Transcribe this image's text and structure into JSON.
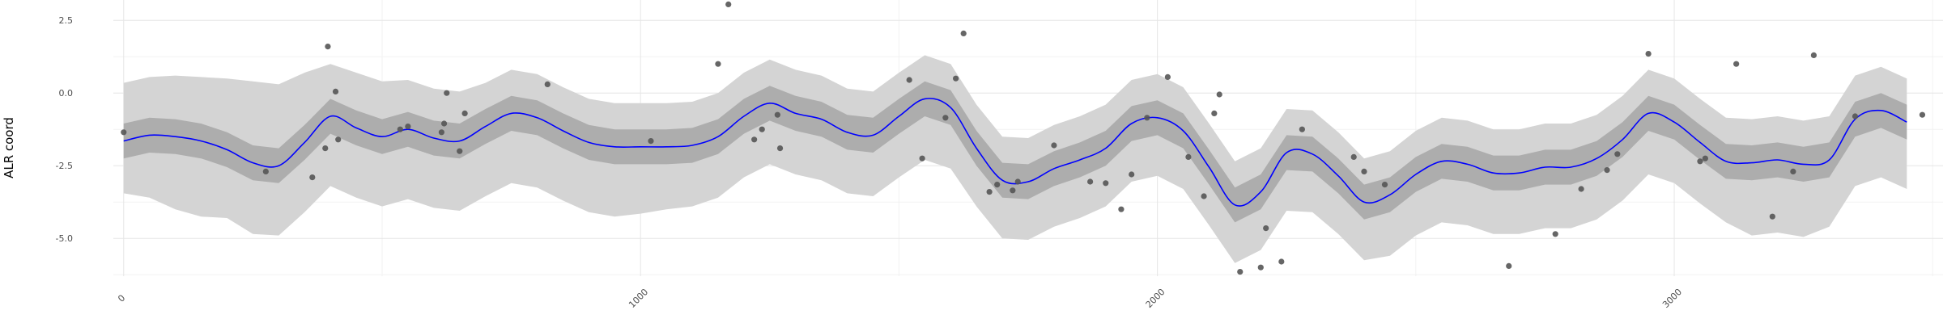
{
  "chart_data": {
    "type": "line",
    "title": "",
    "xlabel": "",
    "ylabel": "ALR coord",
    "xlim": [
      -20,
      3520
    ],
    "ylim": [
      -6.3,
      3.2
    ],
    "xticks": [
      0,
      1000,
      2000,
      3000
    ],
    "xtick_labels": [
      "0",
      "1000",
      "2000",
      "3000"
    ],
    "yticks": [
      -5.0,
      -2.5,
      0.0,
      2.5
    ],
    "ytick_labels": [
      "-5.0",
      "-2.5",
      "0.0",
      "2.5"
    ],
    "grid": true,
    "legend": "none",
    "colors": {
      "line": "#0000ff",
      "inner_band": "#adadad",
      "outer_band": "#d4d4d4",
      "points": "#555555",
      "grid_major": "#e6e6e6",
      "grid_minor": "#f2f2f2"
    },
    "series": [
      {
        "kind": "line",
        "x": [
          0,
          50,
          100,
          150,
          200,
          250,
          300,
          350,
          400,
          450,
          500,
          550,
          600,
          650,
          700,
          750,
          800,
          850,
          900,
          950,
          1000,
          1050,
          1100,
          1150,
          1200,
          1250,
          1300,
          1350,
          1400,
          1450,
          1500,
          1550,
          1600,
          1650,
          1700,
          1750,
          1800,
          1850,
          1900,
          1950,
          2000,
          2050,
          2100,
          2150,
          2200,
          2250,
          2300,
          2350,
          2400,
          2450,
          2500,
          2550,
          2600,
          2650,
          2700,
          2750,
          2800,
          2850,
          2900,
          2950,
          3000,
          3050,
          3100,
          3150,
          3200,
          3250,
          3300,
          3350,
          3400,
          3450
        ],
        "values": [
          -1.65,
          -1.45,
          -1.5,
          -1.65,
          -1.95,
          -2.4,
          -2.5,
          -1.7,
          -0.8,
          -1.2,
          -1.5,
          -1.25,
          -1.55,
          -1.65,
          -1.15,
          -0.7,
          -0.85,
          -1.3,
          -1.7,
          -1.85,
          -1.85,
          -1.85,
          -1.8,
          -1.5,
          -0.8,
          -0.35,
          -0.7,
          -0.9,
          -1.35,
          -1.45,
          -0.8,
          -0.2,
          -0.5,
          -1.9,
          -3.0,
          -3.05,
          -2.6,
          -2.3,
          -1.9,
          -1.05,
          -0.85,
          -1.3,
          -2.55,
          -3.85,
          -3.4,
          -2.05,
          -2.1,
          -2.85,
          -3.75,
          -3.5,
          -2.8,
          -2.35,
          -2.45,
          -2.75,
          -2.75,
          -2.55,
          -2.55,
          -2.25,
          -1.6,
          -0.7,
          -1.0,
          -1.7,
          -2.35,
          -2.4,
          -2.3,
          -2.45,
          -2.3,
          -0.9,
          -0.6,
          -1.0
        ]
      },
      {
        "kind": "band_inner",
        "lower": [
          -2.25,
          -2.05,
          -2.1,
          -2.25,
          -2.55,
          -3.0,
          -3.1,
          -2.3,
          -1.4,
          -1.8,
          -2.1,
          -1.85,
          -2.15,
          -2.25,
          -1.75,
          -1.3,
          -1.45,
          -1.9,
          -2.3,
          -2.45,
          -2.45,
          -2.45,
          -2.4,
          -2.1,
          -1.4,
          -0.95,
          -1.3,
          -1.5,
          -1.95,
          -2.05,
          -1.4,
          -0.8,
          -1.1,
          -2.5,
          -3.6,
          -3.65,
          -3.2,
          -2.9,
          -2.5,
          -1.65,
          -1.45,
          -1.9,
          -3.15,
          -4.45,
          -4.0,
          -2.65,
          -2.7,
          -3.45,
          -4.35,
          -4.1,
          -3.4,
          -2.95,
          -3.05,
          -3.35,
          -3.35,
          -3.15,
          -3.15,
          -2.85,
          -2.2,
          -1.3,
          -1.6,
          -2.3,
          -2.95,
          -3.0,
          -2.9,
          -3.05,
          -2.9,
          -1.5,
          -1.2,
          -1.6
        ],
        "upper": [
          -1.05,
          -0.85,
          -0.9,
          -1.05,
          -1.35,
          -1.8,
          -1.9,
          -1.1,
          -0.2,
          -0.6,
          -0.9,
          -0.65,
          -0.95,
          -1.05,
          -0.55,
          -0.1,
          -0.25,
          -0.7,
          -1.1,
          -1.25,
          -1.25,
          -1.25,
          -1.2,
          -0.9,
          -0.2,
          0.25,
          -0.1,
          -0.3,
          -0.75,
          -0.85,
          -0.2,
          0.4,
          0.1,
          -1.3,
          -2.4,
          -2.45,
          -2.0,
          -1.7,
          -1.3,
          -0.45,
          -0.25,
          -0.7,
          -1.95,
          -3.25,
          -2.8,
          -1.45,
          -1.5,
          -2.25,
          -3.15,
          -2.9,
          -2.2,
          -1.75,
          -1.85,
          -2.15,
          -2.15,
          -1.95,
          -1.95,
          -1.65,
          -1.0,
          -0.1,
          -0.4,
          -1.1,
          -1.75,
          -1.8,
          -1.7,
          -1.85,
          -1.7,
          -0.3,
          0.0,
          -0.4
        ]
      },
      {
        "kind": "band_outer",
        "lower": [
          -3.45,
          -3.6,
          -4.0,
          -4.25,
          -4.3,
          -4.85,
          -4.9,
          -4.1,
          -3.2,
          -3.6,
          -3.9,
          -3.65,
          -3.95,
          -4.05,
          -3.55,
          -3.1,
          -3.25,
          -3.7,
          -4.1,
          -4.25,
          -4.15,
          -4.0,
          -3.9,
          -3.6,
          -2.9,
          -2.45,
          -2.8,
          -3.0,
          -3.45,
          -3.55,
          -2.9,
          -2.3,
          -2.6,
          -3.9,
          -5.0,
          -5.05,
          -4.6,
          -4.3,
          -3.9,
          -3.05,
          -2.85,
          -3.3,
          -4.55,
          -5.85,
          -5.4,
          -4.05,
          -4.1,
          -4.85,
          -5.75,
          -5.6,
          -4.9,
          -4.45,
          -4.55,
          -4.85,
          -4.85,
          -4.65,
          -4.65,
          -4.35,
          -3.7,
          -2.8,
          -3.1,
          -3.8,
          -4.45,
          -4.9,
          -4.8,
          -4.95,
          -4.6,
          -3.2,
          -2.9,
          -3.3
        ],
        "upper": [
          0.35,
          0.55,
          0.6,
          0.55,
          0.5,
          0.4,
          0.3,
          0.7,
          1.0,
          0.7,
          0.4,
          0.45,
          0.15,
          0.05,
          0.35,
          0.8,
          0.65,
          0.2,
          -0.2,
          -0.35,
          -0.35,
          -0.35,
          -0.3,
          0.0,
          0.7,
          1.15,
          0.8,
          0.6,
          0.15,
          0.05,
          0.7,
          1.3,
          1.0,
          -0.4,
          -1.5,
          -1.55,
          -1.1,
          -0.8,
          -0.4,
          0.45,
          0.65,
          0.2,
          -1.05,
          -2.35,
          -1.9,
          -0.55,
          -0.6,
          -1.35,
          -2.25,
          -2.0,
          -1.3,
          -0.85,
          -0.95,
          -1.25,
          -1.25,
          -1.05,
          -1.05,
          -0.75,
          -0.1,
          0.8,
          0.5,
          -0.2,
          -0.85,
          -0.9,
          -0.8,
          -0.95,
          -0.8,
          0.6,
          0.9,
          0.5
        ]
      },
      {
        "kind": "points",
        "x": [
          0,
          275,
          365,
          390,
          395,
          410,
          415,
          535,
          550,
          615,
          620,
          625,
          650,
          660,
          820,
          1020,
          1150,
          1170,
          1220,
          1235,
          1265,
          1270,
          1520,
          1545,
          1590,
          1610,
          1625,
          1675,
          1690,
          1720,
          1730,
          1800,
          1870,
          1900,
          1930,
          1950,
          1980,
          2020,
          2060,
          2090,
          2110,
          2120,
          2160,
          2200,
          2210,
          2240,
          2280,
          2380,
          2400,
          2440,
          2680,
          2770,
          2820,
          2870,
          2890,
          2950,
          3050,
          3060,
          3120,
          3190,
          3230,
          3270,
          3350,
          3480
        ],
        "y": [
          -1.35,
          -2.7,
          -2.9,
          -1.9,
          1.6,
          0.05,
          -1.6,
          -1.25,
          -1.15,
          -1.35,
          -1.05,
          0.0,
          -2.0,
          -0.7,
          0.3,
          -1.65,
          1.0,
          3.05,
          -1.6,
          -1.25,
          -0.75,
          -1.9,
          0.45,
          -2.25,
          -0.85,
          0.5,
          2.05,
          -3.4,
          -3.15,
          -3.35,
          -3.05,
          -1.8,
          -3.05,
          -3.1,
          -4.0,
          -2.8,
          -0.85,
          0.55,
          -2.2,
          -3.55,
          -0.7,
          -0.05,
          -6.15,
          -6.0,
          -4.65,
          -5.8,
          -1.25,
          -2.2,
          -2.7,
          -3.15,
          -5.95,
          -4.85,
          -3.3,
          -2.65,
          -2.1,
          1.35,
          -2.35,
          -2.25,
          1.0,
          -4.25,
          -2.7,
          1.3,
          -0.8,
          -0.75
        ]
      }
    ]
  }
}
